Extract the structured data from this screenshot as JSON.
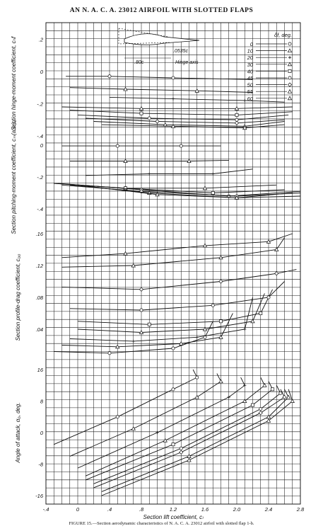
{
  "title": "AN N. A. C. A. 23012 AIRFOIL WITH SLOTTED FLAPS",
  "caption": "FIGURE 15.—Section aerodynamic characteristics of N. A. C. A. 23012 airfoil with slotted flap 1-b.",
  "x_axis": {
    "label": "Section lift coefficient, cₗ",
    "ticks": [
      "-.4",
      "0",
      ".4",
      ".8",
      "1.2",
      "1.6",
      "2.0",
      "2.4",
      "2.8"
    ],
    "range": [
      -0.4,
      2.8
    ]
  },
  "inset": {
    "chord_label": ".80c",
    "gap_label": ".0535c",
    "axis_label": "Hinge axis"
  },
  "legend": {
    "title": "δf, deg.",
    "entries": [
      {
        "label": "0",
        "symbol": "circle"
      },
      {
        "label": "10",
        "symbol": "triangle"
      },
      {
        "label": "20",
        "symbol": "plus"
      },
      {
        "label": "30",
        "symbol": "triangle"
      },
      {
        "label": "40",
        "symbol": "square"
      },
      {
        "label": "45",
        "symbol": "circle"
      },
      {
        "label": "50",
        "symbol": "diamond"
      },
      {
        "label": "55",
        "symbol": "triangle"
      },
      {
        "label": "60",
        "symbol": "triangle"
      }
    ]
  },
  "chart_data": [
    {
      "type": "line",
      "ylabel": "Section hinge-moment coefficient, cₕf",
      "ylim": [
        -0.4,
        0.25
      ],
      "y_ticks": [
        ".2",
        "0",
        "-.2",
        "-.4"
      ],
      "series": [
        {
          "name": "0",
          "x": [
            -0.15,
            0.4,
            1.2,
            2.2
          ],
          "y": [
            -0.03,
            -0.03,
            -0.04,
            -0.05
          ]
        },
        {
          "name": "10",
          "x": [
            -0.1,
            0.6,
            1.5,
            2.2
          ],
          "y": [
            -0.1,
            -0.11,
            -0.12,
            -0.13
          ]
        },
        {
          "name": "20",
          "x": [
            0.4,
            1.2,
            2.1,
            2.6
          ],
          "y": [
            -0.16,
            -0.17,
            -0.18,
            -0.19
          ]
        },
        {
          "name": "30",
          "x": [
            -0.2,
            0.8,
            2.0,
            2.7
          ],
          "y": [
            -0.22,
            -0.23,
            -0.23,
            -0.22
          ]
        },
        {
          "name": "40",
          "x": [
            -0.1,
            0.8,
            2.0,
            2.7
          ],
          "y": [
            -0.24,
            -0.26,
            -0.27,
            -0.25
          ]
        },
        {
          "name": "45",
          "x": [
            0.0,
            0.9,
            2.0,
            2.65
          ],
          "y": [
            -0.27,
            -0.29,
            -0.3,
            -0.27
          ]
        },
        {
          "name": "50",
          "x": [
            0.1,
            1.0,
            2.0,
            2.6
          ],
          "y": [
            -0.29,
            -0.31,
            -0.32,
            -0.3
          ]
        },
        {
          "name": "55",
          "x": [
            0.2,
            1.1,
            2.1,
            2.6
          ],
          "y": [
            -0.31,
            -0.33,
            -0.34,
            -0.31
          ]
        },
        {
          "name": "60",
          "x": [
            0.3,
            1.2,
            2.1,
            2.6
          ],
          "y": [
            -0.33,
            -0.34,
            -0.35,
            -0.33
          ]
        }
      ]
    },
    {
      "type": "line",
      "ylabel": "Section pitching-moment coefficient, cₘ(a.c.)₀",
      "ylim": [
        -0.4,
        0.0
      ],
      "y_ticks": [
        "0",
        "-.2",
        "-.4"
      ],
      "series": [
        {
          "name": "0",
          "x": [
            -0.2,
            0.5,
            1.3,
            1.8
          ],
          "y": [
            -0.005,
            -0.005,
            -0.005,
            -0.005
          ]
        },
        {
          "name": "10",
          "x": [
            -0.1,
            0.6,
            1.4,
            1.9
          ],
          "y": [
            -0.1,
            -0.1,
            -0.1,
            -0.095
          ]
        },
        {
          "name": "20",
          "x": [
            0.1,
            0.9,
            1.7,
            2.2
          ],
          "y": [
            -0.19,
            -0.18,
            -0.18,
            -0.15
          ]
        },
        {
          "name": "30",
          "x": [
            -0.3,
            0.6,
            1.6,
            2.5
          ],
          "y": [
            -0.24,
            -0.27,
            -0.27,
            -0.25
          ]
        },
        {
          "name": "40",
          "x": [
            -0.3,
            0.6,
            1.7,
            2.6
          ],
          "y": [
            -0.24,
            -0.27,
            -0.3,
            -0.28
          ]
        },
        {
          "name": "45",
          "x": [
            -0.25,
            0.8,
            1.9,
            2.8
          ],
          "y": [
            -0.24,
            -0.28,
            -0.32,
            -0.29
          ]
        },
        {
          "name": "50",
          "x": [
            -0.2,
            0.8,
            2.0,
            2.8
          ],
          "y": [
            -0.25,
            -0.29,
            -0.32,
            -0.3
          ]
        },
        {
          "name": "55",
          "x": [
            -0.1,
            0.9,
            2.0,
            2.7
          ],
          "y": [
            -0.25,
            -0.3,
            -0.33,
            -0.3
          ]
        },
        {
          "name": "60",
          "x": [
            0.0,
            1.0,
            2.0,
            2.8
          ],
          "y": [
            -0.25,
            -0.31,
            -0.33,
            -0.32
          ]
        }
      ]
    },
    {
      "type": "line",
      "ylabel": "Section profile-drag coefficient, c₀₀",
      "ylim": [
        0.0,
        0.16
      ],
      "y_ticks": [
        ".16",
        ".12",
        ".08",
        ".04"
      ],
      "series": [
        {
          "name": "0",
          "x": [
            -0.3,
            0.4,
            1.2,
            1.6,
            1.7
          ],
          "y": [
            0.012,
            0.01,
            0.016,
            0.03,
            0.05
          ]
        },
        {
          "name": "10",
          "x": [
            -0.2,
            0.5,
            1.3,
            1.8,
            1.95
          ],
          "y": [
            0.02,
            0.018,
            0.022,
            0.03,
            0.06
          ]
        },
        {
          "name": "20",
          "x": [
            -0.1,
            0.7,
            1.5,
            2.1,
            2.2
          ],
          "y": [
            0.028,
            0.025,
            0.03,
            0.04,
            0.08
          ]
        },
        {
          "name": "30",
          "x": [
            0.0,
            0.8,
            1.6,
            2.2,
            2.35
          ],
          "y": [
            0.04,
            0.036,
            0.04,
            0.05,
            0.085
          ]
        },
        {
          "name": "40",
          "x": [
            0.0,
            0.9,
            1.8,
            2.3,
            2.45
          ],
          "y": [
            0.05,
            0.046,
            0.05,
            0.06,
            0.09
          ]
        },
        {
          "name": "45",
          "x": [
            -0.1,
            0.8,
            1.7,
            2.4,
            2.6
          ],
          "y": [
            0.066,
            0.064,
            0.07,
            0.08,
            0.1
          ]
        },
        {
          "name": "50",
          "x": [
            -0.2,
            0.8,
            1.8,
            2.5,
            2.75
          ],
          "y": [
            0.093,
            0.09,
            0.1,
            0.11,
            0.115
          ]
        },
        {
          "name": "55",
          "x": [
            -0.2,
            0.7,
            1.8,
            2.5,
            2.6
          ],
          "y": [
            0.118,
            0.12,
            0.13,
            0.14,
            0.155
          ]
        },
        {
          "name": "60",
          "x": [
            -0.2,
            0.6,
            1.6,
            2.4,
            2.7
          ],
          "y": [
            0.13,
            0.135,
            0.145,
            0.15,
            0.16
          ]
        }
      ]
    },
    {
      "type": "line",
      "ylabel": "Angle of attack, α₀, deg.",
      "ylim": [
        -16,
        16
      ],
      "y_ticks": [
        "16",
        "8",
        "0",
        "-8",
        "-16"
      ],
      "series": [
        {
          "name": "0",
          "x": [
            -0.3,
            0.5,
            1.2,
            1.5,
            1.45
          ],
          "y": [
            -3,
            4,
            11,
            14,
            16
          ]
        },
        {
          "name": "10",
          "x": [
            -0.1,
            0.7,
            1.5,
            1.8,
            1.75
          ],
          "y": [
            -6,
            1,
            9,
            13,
            15
          ]
        },
        {
          "name": "20",
          "x": [
            0.0,
            1.0,
            1.9,
            2.1,
            2.05
          ],
          "y": [
            -9,
            0,
            9,
            12,
            14
          ]
        },
        {
          "name": "30",
          "x": [
            0.1,
            1.1,
            2.1,
            2.35,
            2.3
          ],
          "y": [
            -11,
            -2,
            8,
            12,
            14
          ]
        },
        {
          "name": "40",
          "x": [
            0.1,
            1.2,
            2.2,
            2.45,
            2.4
          ],
          "y": [
            -12,
            -3,
            7,
            11,
            13
          ]
        },
        {
          "name": "45",
          "x": [
            0.2,
            1.3,
            2.3,
            2.55,
            2.5
          ],
          "y": [
            -13,
            -4,
            6,
            10,
            12
          ]
        },
        {
          "name": "50",
          "x": [
            0.2,
            1.3,
            2.3,
            2.6,
            2.55
          ],
          "y": [
            -14,
            -5,
            5,
            9,
            11
          ]
        },
        {
          "name": "55",
          "x": [
            0.3,
            1.4,
            2.4,
            2.65,
            2.6
          ],
          "y": [
            -15,
            -6,
            4,
            9,
            11
          ]
        },
        {
          "name": "60",
          "x": [
            0.3,
            1.4,
            2.4,
            2.7,
            2.65
          ],
          "y": [
            -16,
            -7,
            3,
            8,
            11
          ]
        }
      ]
    }
  ]
}
